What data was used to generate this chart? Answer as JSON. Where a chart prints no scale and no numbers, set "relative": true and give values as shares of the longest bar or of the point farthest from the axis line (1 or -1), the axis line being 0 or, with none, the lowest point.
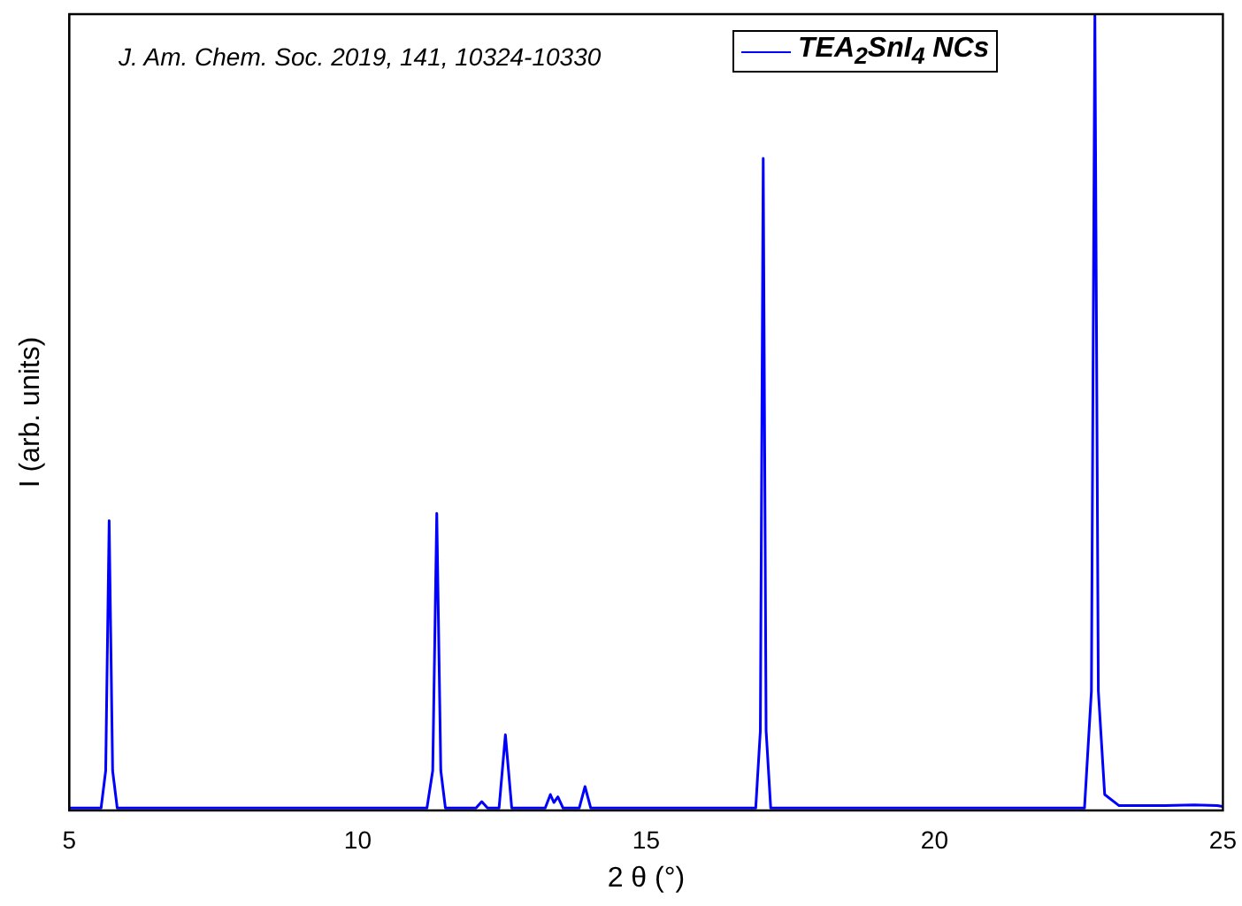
{
  "chart_data": {
    "type": "line",
    "xlabel": "2 θ (°)",
    "ylabel": "I (arb. units)",
    "annotations": [
      "J. Am. Chem. Soc. 2019, 141, 10324-10330"
    ],
    "relative": true,
    "legend": "top",
    "grid": false,
    "marker": "none",
    "line_style": "solid",
    "xlim": [
      5,
      25
    ],
    "xticks": [
      5,
      10,
      15,
      20,
      25
    ],
    "series": [
      {
        "name": "TEA$_{2}$SnI$_{4}$ NCs",
        "color": "#0000ff",
        "x": [
          5,
          5.55,
          5.63,
          5.69,
          5.75,
          5.83,
          11.2,
          11.3,
          11.37,
          11.44,
          11.52,
          12.05,
          12.15,
          12.25,
          12.45,
          12.56,
          12.67,
          13.25,
          13.34,
          13.4,
          13.47,
          13.56,
          13.84,
          13.94,
          14.04,
          16.9,
          16.98,
          17.03,
          17.08,
          17.16,
          22.6,
          22.72,
          22.78,
          22.84,
          22.95,
          23.2,
          24,
          24.5,
          24.9,
          25
        ],
        "values": [
          0.003,
          0.003,
          0.05,
          0.364,
          0.05,
          0.003,
          0.003,
          0.05,
          0.373,
          0.05,
          0.003,
          0.003,
          0.011,
          0.003,
          0.003,
          0.095,
          0.003,
          0.003,
          0.02,
          0.01,
          0.017,
          0.003,
          0.003,
          0.03,
          0.003,
          0.003,
          0.1,
          0.819,
          0.1,
          0.003,
          0.003,
          0.15,
          1,
          0.15,
          0.02,
          0.006,
          0.006,
          0.007,
          0.006,
          0.005
        ]
      }
    ]
  }
}
